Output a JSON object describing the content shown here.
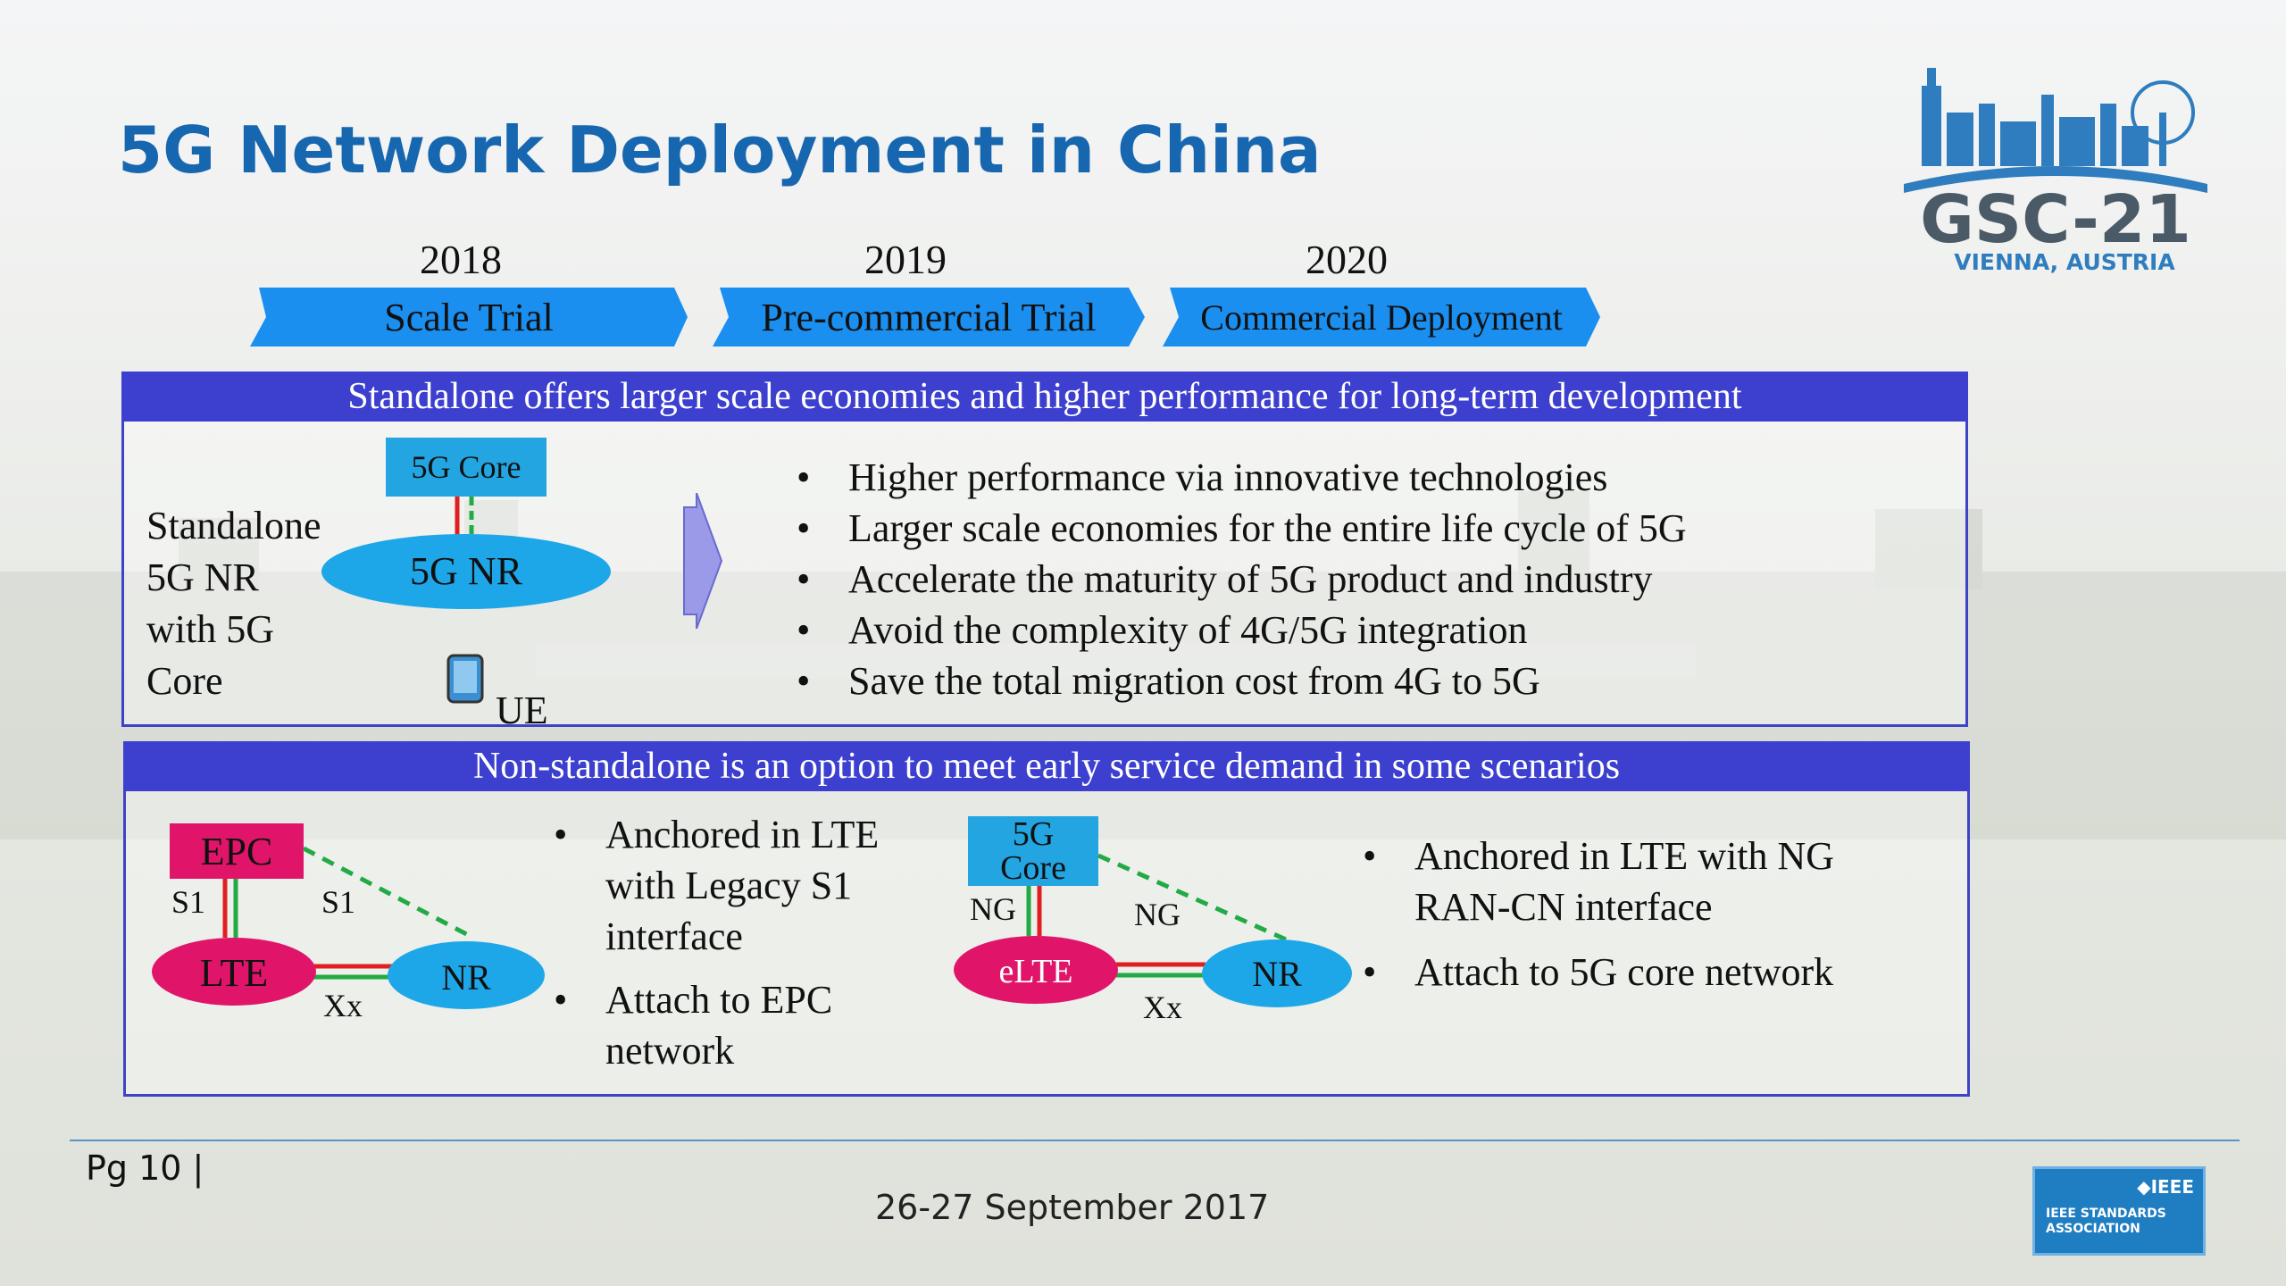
{
  "slide": {
    "title": "5G Network Deployment in China",
    "page_label": "Pg 10 |",
    "date": "26-27 September 2017"
  },
  "logo": {
    "name": "GSC-21",
    "location": "VIENNA, AUSTRIA"
  },
  "timeline": [
    {
      "year": "2018",
      "phase": "Scale Trial"
    },
    {
      "year": "2019",
      "phase": "Pre-commercial Trial"
    },
    {
      "year": "2020",
      "phase": "Commercial Deployment"
    }
  ],
  "standalone": {
    "header": "Standalone offers larger scale economies and higher performance for long-term development",
    "label_lines": [
      "Standalone",
      "5G NR",
      "with 5G",
      "Core"
    ],
    "core_label": "5G Core",
    "nr_label": "5G NR",
    "ue_label": "UE",
    "bullets": [
      "Higher performance via innovative technologies",
      "Larger scale economies for the entire life cycle of 5G",
      "Accelerate the maturity of 5G product and industry",
      "Avoid the complexity of 4G/5G integration",
      "Save the total migration cost from 4G to 5G"
    ]
  },
  "non_standalone": {
    "header": "Non-standalone is an option to meet early service demand in some scenarios",
    "left_diagram": {
      "epc": "EPC",
      "lte": "LTE",
      "nr": "NR",
      "s1_left": "S1",
      "s1_right": "S1",
      "xx": "Xx"
    },
    "left_bullets": [
      [
        "Anchored in LTE",
        "with Legacy S1",
        "interface"
      ],
      [
        "Attach to EPC",
        "network"
      ]
    ],
    "right_diagram": {
      "core_line1": "5G",
      "core_line2": "Core",
      "elte": "eLTE",
      "nr": "NR",
      "ng_left": "NG",
      "ng_right": "NG",
      "xx": "Xx"
    },
    "right_bullets": [
      [
        "Anchored in LTE with NG",
        "RAN-CN interface"
      ],
      [
        "Attach to 5G core network"
      ]
    ]
  },
  "ieee_badge": {
    "brand": "IEEE",
    "line1": "IEEE STANDARDS",
    "line2": "ASSOCIATION"
  },
  "colors": {
    "title": "#1666b0",
    "phase_arrow": "#1a8ff0",
    "panel_header": "#3d3fcf",
    "epc": "#e0156a",
    "nr": "#1ea7e8",
    "core_box": "#22a5e0"
  }
}
